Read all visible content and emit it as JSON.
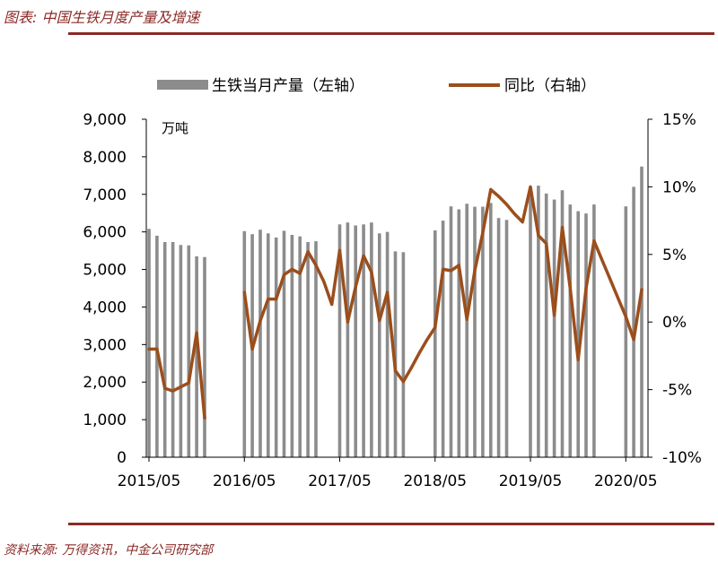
{
  "title": "图表: 中国生铁月度产量及增速",
  "source": "资料来源: 万得资讯，中金公司研究部",
  "colors": {
    "bars": "#8c8c8c",
    "line": "#9b4e1c",
    "accent": "#8b2a26"
  },
  "chart_data": {
    "type": "bar",
    "unit_label": "万吨",
    "x_tick_labels": [
      "2015/05",
      "2016/05",
      "2017/05",
      "2018/05",
      "2019/05",
      "2020/05"
    ],
    "left_axis": {
      "ylim": [
        0,
        9000
      ],
      "ticks": [
        "0",
        "1,000",
        "2,000",
        "3,000",
        "4,000",
        "5,000",
        "6,000",
        "7,000",
        "8,000",
        "9,000"
      ]
    },
    "right_axis": {
      "ylim": [
        -10,
        15
      ],
      "ticks": [
        "-10%",
        "-5%",
        "0%",
        "5%",
        "10%",
        "15%"
      ]
    },
    "series": [
      {
        "name": "生铁当月产量（左轴）",
        "axis": "left",
        "kind": "bar",
        "values": [
          6080,
          5900,
          5730,
          5730,
          5650,
          5640,
          5350,
          5330,
          null,
          null,
          null,
          null,
          6020,
          5940,
          6060,
          5960,
          5850,
          6030,
          5920,
          5880,
          5730,
          5750,
          null,
          null,
          6200,
          6250,
          6170,
          6200,
          6250,
          5960,
          6000,
          5480,
          5460,
          null,
          null,
          null,
          6040,
          6300,
          6680,
          6600,
          6750,
          6670,
          6670,
          6770,
          6370,
          6320,
          null,
          null,
          7060,
          7230,
          7020,
          6860,
          7110,
          6730,
          6550,
          6490,
          6730,
          null,
          null,
          null,
          6680,
          7200,
          7740
        ]
      },
      {
        "name": "同比（右轴）",
        "axis": "right",
        "kind": "line",
        "values": [
          -2.0,
          -2.0,
          -4.9,
          -5.1,
          -4.8,
          -4.5,
          -0.8,
          -7.1,
          null,
          null,
          null,
          null,
          2.2,
          -2.0,
          0.1,
          1.7,
          1.7,
          3.5,
          3.9,
          3.6,
          5.2,
          4.2,
          3.0,
          1.3,
          5.3,
          0.0,
          2.6,
          4.9,
          3.7,
          0.1,
          2.2,
          -3.6,
          -4.4,
          -3.4,
          -2.3,
          -1.3,
          -0.4,
          3.9,
          3.8,
          4.2,
          0.2,
          3.8,
          6.6,
          9.8,
          9.3,
          8.7,
          8.0,
          7.4,
          10.0,
          6.4,
          5.8,
          0.5,
          7.0,
          2.5,
          -2.8,
          2.5,
          6.0,
          4.6,
          3.2,
          1.8,
          0.4,
          -1.3,
          2.4
        ]
      }
    ],
    "legend_position": "top",
    "grid": false
  }
}
